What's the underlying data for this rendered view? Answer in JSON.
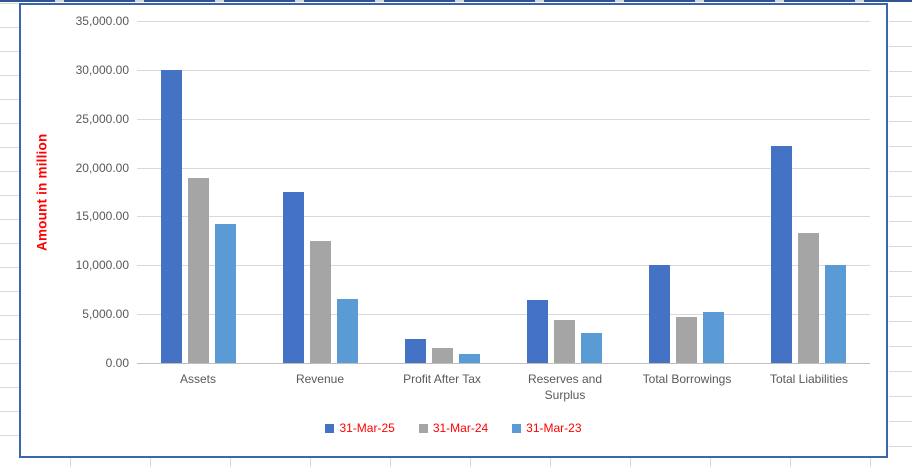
{
  "chart_data": {
    "type": "bar",
    "title": "",
    "categories": [
      "Assets",
      "Revenue",
      "Profit After Tax",
      "Reserves and Surplus",
      "Total Borrowings",
      "Total Liabilities"
    ],
    "series": [
      {
        "name": "31-Mar-25",
        "color": "#4472C4",
        "values": [
          30000,
          17500,
          2500,
          6400,
          10000,
          22200
        ]
      },
      {
        "name": "31-Mar-24",
        "color": "#A5A5A5",
        "values": [
          18900,
          12500,
          1500,
          4400,
          4700,
          13300
        ]
      },
      {
        "name": "31-Mar-23",
        "color": "#5B9BD5",
        "values": [
          14200,
          6600,
          900,
          3100,
          5200,
          10000
        ]
      }
    ],
    "xlabel": "",
    "ylabel": "Amount in million",
    "ylim": [
      0,
      35000
    ],
    "ytick_step": 5000,
    "ytick_labels": [
      "0.00",
      "5,000.00",
      "10,000.00",
      "15,000.00",
      "20,000.00",
      "25,000.00",
      "30,000.00",
      "35,000.00"
    ],
    "grid": true,
    "legend_position": "bottom"
  },
  "colors": {
    "axis_title_text": "#FF0000",
    "legend_text": "#FF0000",
    "tick_text": "#595959",
    "gridline": "#D9D9D9",
    "axis_line": "#BFBFBF",
    "chart_border": "#3A66AD",
    "sheet_gridline": "#D9D9D9",
    "sheet_top_border": "#2F5597"
  }
}
